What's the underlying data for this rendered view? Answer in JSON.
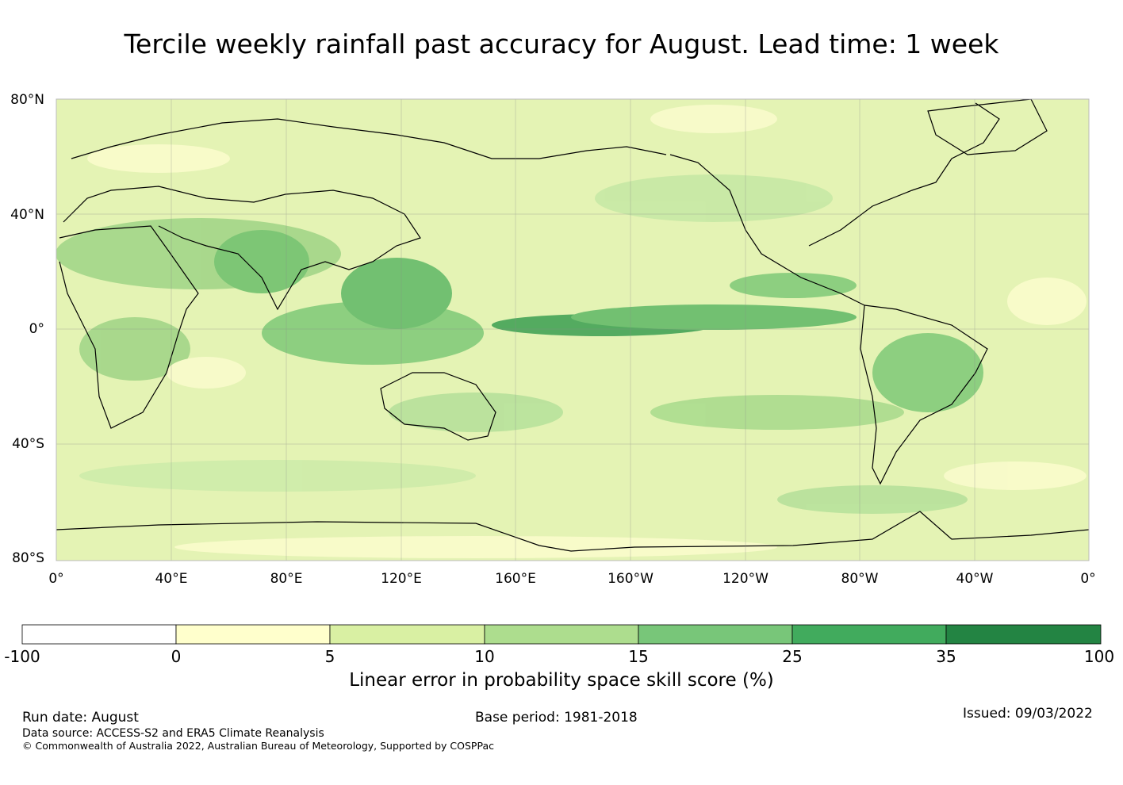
{
  "title": "Tercile weekly rainfall past accuracy for August. Lead time: 1 week",
  "map": {
    "lat_labels": [
      "80°N",
      "40°N",
      "0°",
      "40°S",
      "80°S"
    ],
    "lon_labels": [
      "0°",
      "40°E",
      "80°E",
      "120°E",
      "160°E",
      "160°W",
      "120°W",
      "80°W",
      "40°W",
      "0°"
    ]
  },
  "colorbar": {
    "ticks": [
      "-100",
      "0",
      "5",
      "10",
      "15",
      "25",
      "35",
      "100"
    ],
    "colors": [
      "#ffffff",
      "#ffffcc",
      "#d9f0a3",
      "#addd8e",
      "#78c679",
      "#41ab5d",
      "#238443"
    ],
    "label": "Linear error in probability space skill score (%)"
  },
  "footer": {
    "run_date": "Run date: August",
    "base_period": "Base period: 1981-2018",
    "issued": "Issued: 09/03/2022",
    "data_source": "Data source: ACCESS-S2 and ERA5 Climate Reanalysis",
    "copyright": "© Commonwealth of Australia 2022, Australian Bureau of Meteorology, Supported by COSPPac"
  }
}
